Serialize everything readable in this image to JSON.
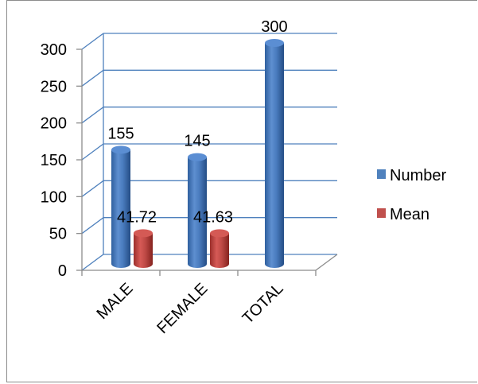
{
  "chart_data": {
    "type": "bar",
    "categories": [
      "MALE",
      "FEMALE",
      "TOTAL"
    ],
    "series": [
      {
        "name": "Number",
        "values": [
          155,
          145,
          300
        ],
        "color": "#4f81bd"
      },
      {
        "name": "Mean",
        "values": [
          41.72,
          41.63,
          null
        ],
        "color": "#c0504d"
      }
    ],
    "data_labels": [
      "155",
      "41.72",
      "145",
      "41.63",
      "300"
    ],
    "y_ticks": [
      "0",
      "50",
      "100",
      "150",
      "200",
      "250",
      "300"
    ],
    "ylim": [
      0,
      300
    ],
    "grid": true,
    "legend_position": "right",
    "style": "3d-cylinder"
  }
}
